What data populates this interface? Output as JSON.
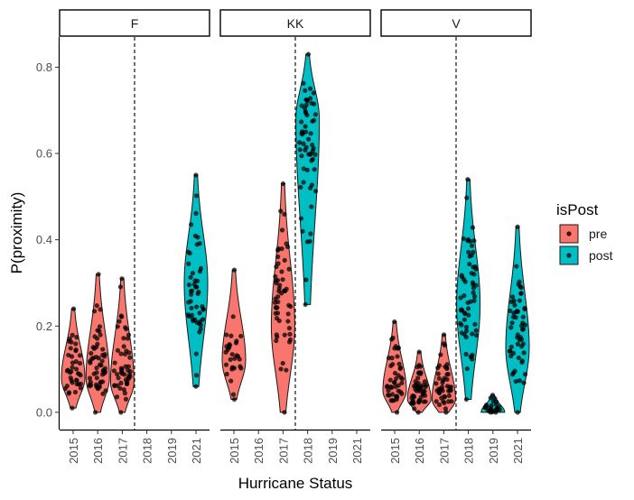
{
  "chart_data": {
    "type": "violin",
    "xlabel": "Hurricane Status",
    "ylabel": "P(proximity)",
    "ylim": [
      -0.04,
      0.87
    ],
    "y_ticks": [
      0.0,
      0.2,
      0.4,
      0.6,
      0.8
    ],
    "y_tick_labels": [
      "0.0",
      "0.2",
      "0.4",
      "0.6",
      "0.8"
    ],
    "categories": [
      "2015",
      "2016",
      "2017",
      "2018",
      "2019",
      "2021"
    ],
    "hurricane_line_between": [
      "2017",
      "2018"
    ],
    "grid": false,
    "legend": {
      "title": "isPost",
      "position": "right",
      "items": [
        {
          "label": "pre",
          "color": "#F8766D"
        },
        {
          "label": "post",
          "color": "#00BFC4"
        }
      ]
    },
    "panels": [
      {
        "label": "F",
        "groups": [
          {
            "year": "2015",
            "status": "pre",
            "n": 40,
            "min": 0.01,
            "max": 0.24,
            "median": 0.08
          },
          {
            "year": "2016",
            "status": "pre",
            "n": 55,
            "min": 0.0,
            "max": 0.32,
            "median": 0.08
          },
          {
            "year": "2017",
            "status": "pre",
            "n": 50,
            "min": 0.0,
            "max": 0.31,
            "median": 0.07
          },
          {
            "year": "2021",
            "status": "post",
            "n": 50,
            "min": 0.06,
            "max": 0.55,
            "median": 0.3
          }
        ]
      },
      {
        "label": "KK",
        "groups": [
          {
            "year": "2015",
            "status": "pre",
            "n": 30,
            "min": 0.03,
            "max": 0.33,
            "median": 0.12
          },
          {
            "year": "2017",
            "status": "pre",
            "n": 55,
            "min": 0.0,
            "max": 0.53,
            "median": 0.2
          },
          {
            "year": "2018",
            "status": "post",
            "n": 60,
            "min": 0.25,
            "max": 0.83,
            "median": 0.68
          }
        ]
      },
      {
        "label": "V",
        "groups": [
          {
            "year": "2015",
            "status": "pre",
            "n": 45,
            "min": 0.0,
            "max": 0.21,
            "median": 0.05
          },
          {
            "year": "2016",
            "status": "pre",
            "n": 50,
            "min": 0.0,
            "max": 0.14,
            "median": 0.03
          },
          {
            "year": "2017",
            "status": "pre",
            "n": 45,
            "min": 0.0,
            "max": 0.18,
            "median": 0.03
          },
          {
            "year": "2018",
            "status": "post",
            "n": 60,
            "min": 0.03,
            "max": 0.54,
            "median": 0.25
          },
          {
            "year": "2019",
            "status": "post",
            "n": 25,
            "min": 0.0,
            "max": 0.04,
            "median": 0.0
          },
          {
            "year": "2021",
            "status": "post",
            "n": 55,
            "min": 0.0,
            "max": 0.43,
            "median": 0.15
          }
        ]
      }
    ]
  }
}
